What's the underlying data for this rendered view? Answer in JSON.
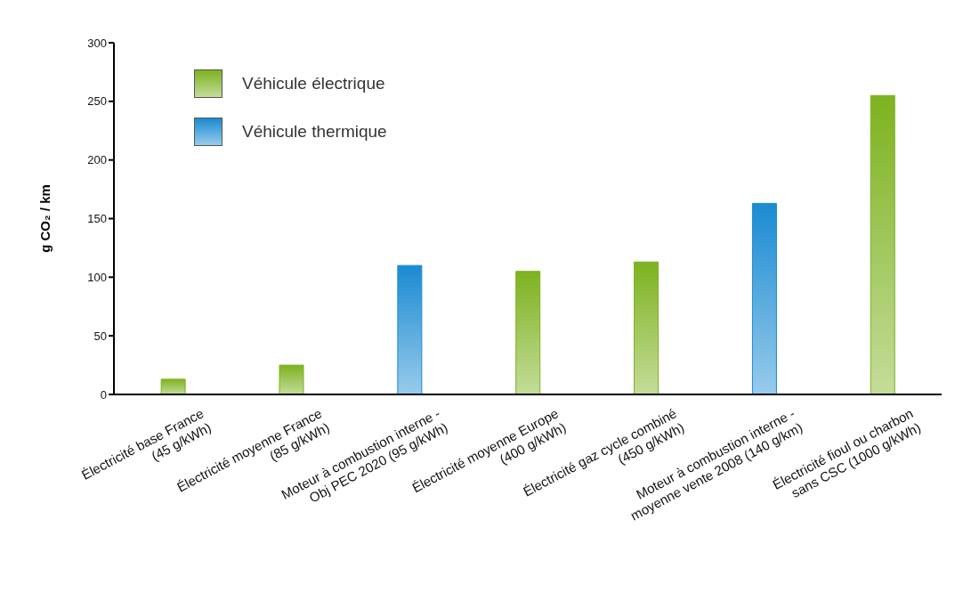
{
  "chart_data": {
    "type": "bar",
    "ylabel": "g CO₂ / km",
    "stacked": true,
    "categories": [
      "Électricité base France\n(45 g/kWh)",
      "Électricité moyenne France\n(85 g/kWh)",
      "Moteur à combustion interne -\nObj PEC 2020 (95 g/kWh)",
      "Électricité moyenne Europe\n(400 g/kWh)",
      "Électricité gaz cycle combiné\n(450 g/kWh)",
      "Moteur à combustion interne -\nmoyenne vente 2008 (140 g/km)",
      "Électricité fioul ou charbon\nsans CSC (1000 g/kWh)"
    ],
    "series": [
      {
        "name": "Véhicule électrique",
        "color": "#7db21f",
        "values": [
          13,
          25,
          null,
          105,
          113,
          null,
          255
        ]
      },
      {
        "name": "Véhicule thermique",
        "color": "#1a8bd2",
        "values": [
          null,
          null,
          110,
          null,
          null,
          163,
          null
        ]
      }
    ],
    "ylim": [
      0,
      300
    ],
    "yticks": [
      0,
      50,
      100,
      150,
      200,
      250,
      300
    ],
    "grid": false,
    "legend": "top left"
  }
}
